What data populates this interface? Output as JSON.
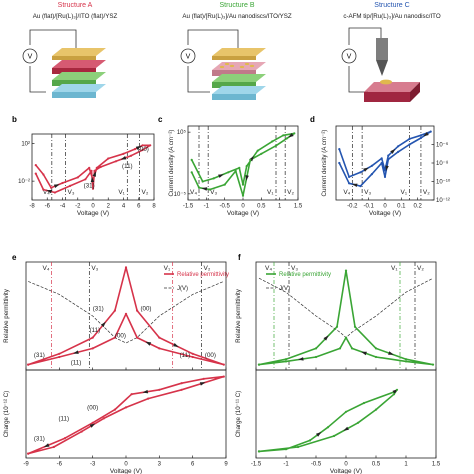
{
  "structures": [
    {
      "title": "Structure A",
      "formula": "Au (flat)/[Ru(L)₃]/ITO (flat)/YSZ",
      "color": "#d6334a"
    },
    {
      "title": "Structure B",
      "formula": "Au (flat)/[Ru(L)₃]/Au nanodiscs/ITO/YSZ",
      "color": "#3aa535"
    },
    {
      "title": "Structure C",
      "formula": "c-AFM tip/[Ru(L)₃]/Au nanodisc/ITO",
      "color": "#2455b0"
    }
  ],
  "voltmeter_symbol": "V",
  "chart_data": [
    {
      "panel": "b",
      "type": "line",
      "color": "#d6334a",
      "xlabel": "Voltage (V)",
      "ylabel": "",
      "xlim": [
        -8,
        8
      ],
      "ylim": [
        -4,
        3
      ],
      "y_log": true,
      "xticks": [
        -8,
        -6,
        -4,
        -2,
        0,
        2,
        4,
        6,
        8
      ],
      "yticks": [
        {
          "v": 2,
          "label": "10²"
        },
        {
          "v": -2,
          "label": "10⁻²"
        }
      ],
      "vlines": [
        {
          "x": -5.4,
          "label": "V₄"
        },
        {
          "x": -3.6,
          "label": "V₃"
        },
        {
          "x": 4.5,
          "label": "V₁"
        },
        {
          "x": 6.1,
          "label": "V₂"
        }
      ],
      "annotations": [
        {
          "x": -0.5,
          "y": -2.7,
          "text": "(31)"
        },
        {
          "x": 4.5,
          "y": -0.6,
          "text": "(11)"
        },
        {
          "x": 6.6,
          "y": 1.2,
          "text": "(00)"
        }
      ],
      "curve": [
        [
          -7.5,
          -0.3
        ],
        [
          -6.5,
          -1.3
        ],
        [
          -5.5,
          -2.7
        ],
        [
          -4,
          -2.2
        ],
        [
          -2,
          -1.6
        ],
        [
          -0.5,
          -0.6
        ],
        [
          0,
          -1.9
        ],
        [
          0.5,
          -0.6
        ],
        [
          2,
          0.4
        ],
        [
          4,
          0.9
        ],
        [
          5.5,
          1.4
        ],
        [
          6.5,
          1.8
        ],
        [
          7.5,
          1.8
        ],
        [
          6.5,
          1.3
        ],
        [
          5,
          0.7
        ],
        [
          3,
          0.1
        ],
        [
          1,
          -0.5
        ],
        [
          0.2,
          -0.9
        ],
        [
          0,
          -2.8
        ],
        [
          -0.2,
          -0.9
        ],
        [
          -1,
          -1.8
        ],
        [
          -3,
          -2.5
        ],
        [
          -5,
          -3.2
        ],
        [
          -6.5,
          -2.9
        ],
        [
          -7.5,
          -1.2
        ]
      ]
    },
    {
      "panel": "c",
      "type": "line",
      "color": "#3aa535",
      "xlabel": "Voltage (V)",
      "ylabel": "Current density (A cm⁻²)",
      "xlim": [
        -1.5,
        1.5
      ],
      "ylim": [
        -6,
        6
      ],
      "y_log": true,
      "xticks": [
        -1.5,
        -1,
        -0.5,
        0,
        0.5,
        1,
        1.5
      ],
      "yticks": [
        {
          "v": 5,
          "label": "10⁵"
        },
        {
          "v": -5,
          "label": "10⁻⁵"
        }
      ],
      "vlines": [
        {
          "x": -1.2,
          "label": "V₄"
        },
        {
          "x": -0.95,
          "label": "V₃"
        },
        {
          "x": 0.9,
          "label": "V₁"
        },
        {
          "x": 1.15,
          "label": "V₂"
        }
      ],
      "annotations": [],
      "curve": [
        [
          -1.4,
          0.5
        ],
        [
          -1.1,
          -3
        ],
        [
          -0.8,
          -2.5
        ],
        [
          -0.4,
          -1.5
        ],
        [
          -0.1,
          -0.8
        ],
        [
          0,
          -3.5
        ],
        [
          0.1,
          -0.5
        ],
        [
          0.4,
          2
        ],
        [
          0.8,
          3.5
        ],
        [
          1.1,
          4.5
        ],
        [
          1.4,
          4.8
        ],
        [
          1.2,
          4
        ],
        [
          0.9,
          2.8
        ],
        [
          0.5,
          1.5
        ],
        [
          0.2,
          0.5
        ],
        [
          0,
          -5.3
        ],
        [
          -0.2,
          -1.3
        ],
        [
          -0.5,
          -3.5
        ],
        [
          -0.9,
          -4.3
        ],
        [
          -1.2,
          -4
        ],
        [
          -1.4,
          -1.5
        ]
      ]
    },
    {
      "panel": "d",
      "type": "line",
      "color": "#2455b0",
      "xlabel": "Voltage (V)",
      "ylabel": "Current density (A cm⁻²)",
      "xlim": [
        -0.3,
        0.3
      ],
      "ylim": [
        -12,
        -4
      ],
      "y_log": true,
      "xticks": [
        -0.2,
        -0.1,
        0,
        0.1,
        0.2
      ],
      "yticks": [
        {
          "v": -6,
          "label": "10⁻⁶"
        },
        {
          "v": -8,
          "label": "10⁻⁸"
        },
        {
          "v": -10,
          "label": "10⁻¹⁰"
        },
        {
          "v": -12,
          "label": "10⁻¹²"
        }
      ],
      "yticks_right": true,
      "vlines": [
        {
          "x": -0.2,
          "label": "V₄"
        },
        {
          "x": -0.14,
          "label": "V₃"
        },
        {
          "x": 0.15,
          "label": "V₁"
        },
        {
          "x": 0.22,
          "label": "V₂"
        }
      ],
      "annotations": [],
      "curve": [
        [
          -0.28,
          -6.5
        ],
        [
          -0.22,
          -9.5
        ],
        [
          -0.15,
          -9
        ],
        [
          -0.08,
          -8.3
        ],
        [
          -0.02,
          -7.5
        ],
        [
          0,
          -8.8
        ],
        [
          0.02,
          -7.2
        ],
        [
          0.08,
          -6.2
        ],
        [
          0.15,
          -5.4
        ],
        [
          0.22,
          -5
        ],
        [
          0.28,
          -4.6
        ],
        [
          0.22,
          -5.3
        ],
        [
          0.15,
          -6
        ],
        [
          0.08,
          -6.8
        ],
        [
          0.02,
          -7.6
        ],
        [
          0,
          -9.5
        ],
        [
          -0.02,
          -8
        ],
        [
          -0.08,
          -9.2
        ],
        [
          -0.15,
          -10.5
        ],
        [
          -0.22,
          -10.2
        ],
        [
          -0.28,
          -8
        ]
      ]
    },
    {
      "panel": "e",
      "type": "line",
      "color": "#d6334a",
      "xlabel": "Voltage (V)",
      "ylabel": "Relative permittivity",
      "xlim": [
        -9,
        9
      ],
      "ylim": [
        0,
        1
      ],
      "xticks": [
        -9,
        -6,
        -3,
        0,
        3,
        6,
        9
      ],
      "legend": [
        "Relative permittivity",
        "J(V)"
      ],
      "legend_position": "top-right",
      "vlines": [
        {
          "x": -6.7,
          "label": "V₄",
          "style": "red"
        },
        {
          "x": -3.3,
          "label": "V₃",
          "style": "black"
        },
        {
          "x": 4.2,
          "label": "V₁",
          "style": "red"
        },
        {
          "x": 6.8,
          "label": "V₂",
          "style": "black"
        }
      ],
      "annotations": [
        {
          "x": -2.5,
          "y": 0.55,
          "text": "(31)"
        },
        {
          "x": 1.8,
          "y": 0.55,
          "text": "(00)"
        },
        {
          "x": -2.8,
          "y": 0.35,
          "text": "(11)"
        },
        {
          "x": -0.5,
          "y": 0.3,
          "text": "(00)"
        },
        {
          "x": -7.8,
          "y": 0.12,
          "text": "(31)"
        },
        {
          "x": -4.5,
          "y": 0.05,
          "text": "(11)"
        },
        {
          "x": 5.3,
          "y": 0.12,
          "text": "(11)"
        },
        {
          "x": 7.6,
          "y": 0.12,
          "text": "(00)"
        }
      ],
      "curve": [
        [
          -8.8,
          0.05
        ],
        [
          -6,
          0.15
        ],
        [
          -3,
          0.3
        ],
        [
          -1,
          0.55
        ],
        [
          0,
          0.95
        ],
        [
          1,
          0.55
        ],
        [
          3,
          0.3
        ],
        [
          6,
          0.15
        ],
        [
          8.8,
          0.05
        ],
        [
          6,
          0.12
        ],
        [
          3,
          0.2
        ],
        [
          1,
          0.3
        ],
        [
          0,
          0.52
        ],
        [
          -1,
          0.3
        ],
        [
          -3,
          0.2
        ],
        [
          -6,
          0.12
        ],
        [
          -8.8,
          0.05
        ]
      ],
      "jv_curve": [
        [
          -8.8,
          0.82
        ],
        [
          -6,
          0.7
        ],
        [
          -3,
          0.5
        ],
        [
          -1,
          0.3
        ],
        [
          0,
          0.25
        ],
        [
          1,
          0.3
        ],
        [
          3,
          0.5
        ],
        [
          6,
          0.7
        ],
        [
          8.8,
          0.82
        ]
      ]
    },
    {
      "panel": "e-charge",
      "type": "line",
      "color": "#d6334a",
      "xlabel": "Voltage (V)",
      "ylabel": "Charge (10⁻¹² C)",
      "xlim": [
        -9,
        9
      ],
      "ylim": [
        -1,
        1
      ],
      "xticks": [
        -9,
        -6,
        -3,
        0,
        3,
        6,
        9
      ],
      "annotations": [
        {
          "x": -3,
          "y": 0.1,
          "text": "(00)"
        },
        {
          "x": -5.6,
          "y": -0.15,
          "text": "(11)"
        },
        {
          "x": -7.8,
          "y": -0.6,
          "text": "(31)"
        }
      ],
      "curve": [
        [
          -8.8,
          -0.9
        ],
        [
          -6.5,
          -0.75
        ],
        [
          -4,
          -0.4
        ],
        [
          -2,
          -0.1
        ],
        [
          0,
          0.15
        ],
        [
          2,
          0.35
        ],
        [
          5,
          0.55
        ],
        [
          8.8,
          0.85
        ],
        [
          7,
          0.8
        ],
        [
          5,
          0.7
        ],
        [
          3,
          0.55
        ],
        [
          0.5,
          0.45
        ],
        [
          -1,
          0.1
        ],
        [
          -3,
          -0.2
        ],
        [
          -5.5,
          -0.55
        ],
        [
          -8.8,
          -0.9
        ]
      ]
    },
    {
      "panel": "f",
      "type": "line",
      "color": "#3aa535",
      "xlabel": "Voltage (V)",
      "ylabel": "Relative permittivity",
      "xlim": [
        -1.5,
        1.5
      ],
      "ylim": [
        0,
        1
      ],
      "xticks": [
        -1.5,
        -1,
        -0.5,
        0,
        0.5,
        1,
        1.5
      ],
      "legend": [
        "Relative permittivity",
        "J(V)"
      ],
      "legend_position": "top-left",
      "vlines": [
        {
          "x": -1.2,
          "label": "V₄",
          "style": "green"
        },
        {
          "x": -0.95,
          "label": "V₃",
          "style": "black"
        },
        {
          "x": 0.9,
          "label": "V₁",
          "style": "green"
        },
        {
          "x": 1.15,
          "label": "V₂",
          "style": "black"
        }
      ],
      "annotations": [],
      "curve": [
        [
          -1.45,
          0.05
        ],
        [
          -1,
          0.1
        ],
        [
          -0.5,
          0.2
        ],
        [
          -0.15,
          0.4
        ],
        [
          0,
          0.92
        ],
        [
          0.15,
          0.4
        ],
        [
          0.5,
          0.2
        ],
        [
          1,
          0.1
        ],
        [
          1.45,
          0.05
        ],
        [
          1,
          0.08
        ],
        [
          0.5,
          0.12
        ],
        [
          0.1,
          0.2
        ],
        [
          0,
          0.3
        ],
        [
          -0.1,
          0.2
        ],
        [
          -0.5,
          0.12
        ],
        [
          -1,
          0.08
        ],
        [
          -1.45,
          0.05
        ]
      ],
      "jv_curve": [
        [
          -1.45,
          0.85
        ],
        [
          -1,
          0.72
        ],
        [
          -0.5,
          0.5
        ],
        [
          -0.1,
          0.35
        ],
        [
          0,
          0.3
        ],
        [
          0.1,
          0.35
        ],
        [
          0.5,
          0.5
        ],
        [
          1,
          0.72
        ],
        [
          1.45,
          0.85
        ]
      ]
    },
    {
      "panel": "f-charge",
      "type": "line",
      "color": "#3aa535",
      "xlabel": "Voltage (V)",
      "ylabel": "Charge (10⁻¹¹ C)",
      "xlim": [
        -1.5,
        1.5
      ],
      "ylim": [
        -1,
        1
      ],
      "xticks": [
        -1.5,
        -1,
        -0.5,
        0,
        0.5,
        1,
        1.5
      ],
      "annotations": [],
      "curve": [
        [
          -1.45,
          -0.85
        ],
        [
          -1,
          -0.8
        ],
        [
          -0.6,
          -0.6
        ],
        [
          -0.3,
          -0.3
        ],
        [
          0,
          0.05
        ],
        [
          0.3,
          0.25
        ],
        [
          0.8,
          0.5
        ],
        [
          0.85,
          0.55
        ],
        [
          0.8,
          0.45
        ],
        [
          0.5,
          0.1
        ],
        [
          0.2,
          -0.2
        ],
        [
          -0.2,
          -0.5
        ],
        [
          -0.8,
          -0.75
        ],
        [
          -1.45,
          -0.85
        ]
      ]
    }
  ]
}
